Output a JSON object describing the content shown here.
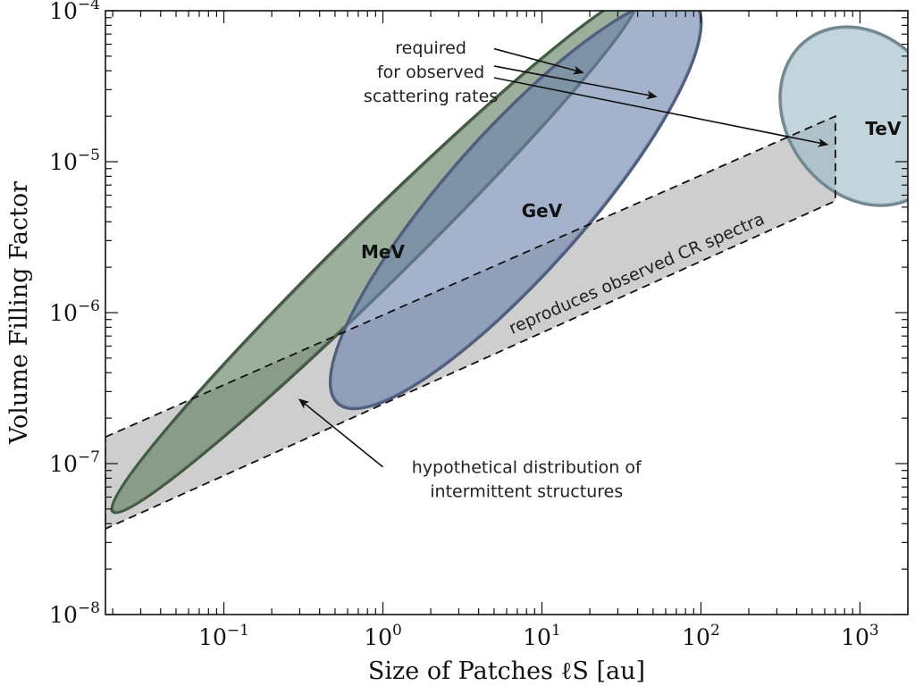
{
  "chart_data": {
    "type": "scatter",
    "title": "",
    "xlabel": "Size of Patches ℓS [au]",
    "ylabel": "Volume Filling Factor",
    "x_scale": "log",
    "y_scale": "log",
    "xlim": [
      0.018,
      2000
    ],
    "ylim": [
      1e-08,
      0.0001
    ],
    "grid": false,
    "x_ticks": [
      {
        "value": 0.1,
        "base": "10",
        "exp": "−1"
      },
      {
        "value": 1,
        "base": "10",
        "exp": "0"
      },
      {
        "value": 10,
        "base": "10",
        "exp": "1"
      },
      {
        "value": 100,
        "base": "10",
        "exp": "2"
      },
      {
        "value": 1000,
        "base": "10",
        "exp": "3"
      }
    ],
    "y_ticks": [
      {
        "value": 1e-08,
        "base": "10",
        "exp": "−8"
      },
      {
        "value": 1e-07,
        "base": "10",
        "exp": "−7"
      },
      {
        "value": 1e-06,
        "base": "10",
        "exp": "−6"
      },
      {
        "value": 1e-05,
        "base": "10",
        "exp": "−5"
      },
      {
        "value": 0.0001,
        "base": "10",
        "exp": "−4"
      }
    ],
    "band": {
      "label": "reproduces observed CR spectra",
      "polygon": [
        [
          0.018,
          1.5e-07
        ],
        [
          700,
          2e-05
        ],
        [
          700,
          5.5e-06
        ],
        [
          0.018,
          3.7e-08
        ]
      ]
    },
    "regions": [
      {
        "name": "MeV",
        "color": "#5f7c5f",
        "label_pos": [
          1.0,
          2.3e-06
        ],
        "ellipse": {
          "p1": [
            0.02,
            4.8e-08
          ],
          "p2": [
            40,
            0.000125
          ],
          "half_width": 0.2
        }
      },
      {
        "name": "GeV",
        "color": "#6e82ad",
        "label_pos": [
          10,
          4.3e-06
        ],
        "ellipse": {
          "p1": [
            0.52,
            2.5e-07
          ],
          "p2": [
            90,
            0.000115
          ],
          "half_width": 0.44
        }
      },
      {
        "name": "TeV",
        "color": "#9dbac6",
        "label_pos": [
          1400,
          1.5e-05
        ],
        "ellipse": {
          "p1": [
            430,
            1e-05
          ],
          "p2": [
            2600,
            4e-05
          ],
          "half_width": 0.6
        }
      }
    ],
    "annotations": [
      {
        "lines": [
          "required",
          "for observed",
          "scattering rates"
        ],
        "text_pos": [
          2.0,
          3.9e-05
        ],
        "arrows": [
          {
            "from": [
              5.0,
              5.6e-05
            ],
            "to": [
              18,
              3.9e-05
            ]
          },
          {
            "from": [
              5.0,
              4.3e-05
            ],
            "to": [
              52,
              2.7e-05
            ]
          },
          {
            "from": [
              5.0,
              3.6e-05
            ],
            "to": [
              620,
              1.3e-05
            ]
          }
        ]
      },
      {
        "lines": [
          "hypothetical distribution of",
          "intermittent structures"
        ],
        "text_pos": [
          8,
          7.8e-08
        ],
        "arrows": [
          {
            "from": [
              1.0,
              9.5e-08
            ],
            "to": [
              0.3,
              2.65e-07
            ]
          }
        ]
      }
    ]
  }
}
